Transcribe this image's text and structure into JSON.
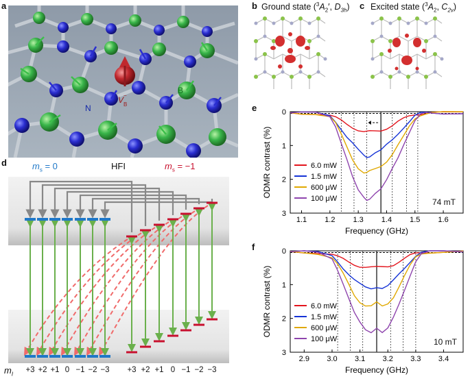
{
  "panels": {
    "a": {
      "letter": "a",
      "label_N": "N",
      "label_B": "B",
      "label_V": "V",
      "label_V_sub": "B",
      "label_V_sup": "−"
    },
    "b": {
      "letter": "b",
      "title_main": "Ground state (",
      "title_sup": "3",
      "title_A": "A",
      "title_sub": "2",
      "title_prime": "′, ",
      "title_D": "D",
      "title_D_sub": "3h",
      "title_close": ")"
    },
    "c": {
      "letter": "c",
      "title_main": "Excited state (",
      "title_sup": "3",
      "title_A": "A",
      "title_sub": "2",
      "title_sep": ", ",
      "title_C": "C",
      "title_C_sub": "2v",
      "title_close": ")"
    },
    "d": {
      "letter": "d",
      "ms0_m": "m",
      "ms0_sub": "s",
      "ms0_rest": " = 0",
      "hfi": "HFI",
      "msm1_m": "m",
      "msm1_sub": "s",
      "msm1_rest": " = −1",
      "mI_m": "m",
      "mI_sub": "I",
      "mI_values_left": [
        "+3",
        "+2",
        "+1",
        "0",
        "−1",
        "−2",
        "−3"
      ],
      "mI_values_right": [
        "+3",
        "+2",
        "+1",
        "0",
        "−1",
        "−2",
        "−3"
      ],
      "colors": {
        "ms0": "#1f78c8",
        "msm1": "#c8102e",
        "green": "#6ab04c",
        "gray": "#888888",
        "dashed": "#f06a6a"
      }
    },
    "e": {
      "letter": "e",
      "field": "74 mT"
    },
    "f": {
      "letter": "f",
      "field": "10 mT"
    }
  },
  "chart_data": [
    {
      "panel": "e",
      "type": "line",
      "xlabel": "Frequency (GHz)",
      "ylabel": "ODMR contrast (%)",
      "xlim": [
        1.06,
        1.67
      ],
      "ylim": [
        3,
        0
      ],
      "x_ticks": [
        "1.1",
        "1.2",
        "1.3",
        "1.4",
        "1.5",
        "1.6"
      ],
      "y_ticks": [
        "0",
        "1",
        "2",
        "3"
      ],
      "center_line": 1.38,
      "dotted_lines": [
        1.24,
        1.285,
        1.33,
        1.42,
        1.47,
        1.51
      ],
      "x": [
        1.06,
        1.1,
        1.15,
        1.2,
        1.22,
        1.24,
        1.26,
        1.28,
        1.3,
        1.32,
        1.33,
        1.34,
        1.36,
        1.38,
        1.4,
        1.42,
        1.44,
        1.46,
        1.48,
        1.5,
        1.52,
        1.54,
        1.56,
        1.6,
        1.67
      ],
      "series": [
        {
          "name": "6.0 mW",
          "color": "#e3141c",
          "values": [
            0.03,
            0.04,
            0.05,
            0.1,
            0.18,
            0.28,
            0.38,
            0.46,
            0.53,
            0.58,
            0.6,
            0.6,
            0.58,
            0.55,
            0.48,
            0.4,
            0.3,
            0.22,
            0.14,
            0.08,
            0.05,
            0.04,
            0.03,
            0.03,
            0.03
          ]
        },
        {
          "name": "1.5 mW",
          "color": "#1432d6",
          "values": [
            0.03,
            0.04,
            0.05,
            0.12,
            0.28,
            0.5,
            0.75,
            0.95,
            1.15,
            1.3,
            1.33,
            1.3,
            1.2,
            1.15,
            1.0,
            0.85,
            0.65,
            0.45,
            0.28,
            0.12,
            0.06,
            0.04,
            0.03,
            0.03,
            0.03
          ]
        },
        {
          "name": "600 μW",
          "color": "#e0a800",
          "values": [
            0.03,
            0.04,
            0.05,
            0.14,
            0.35,
            0.7,
            1.05,
            1.4,
            1.65,
            1.8,
            1.82,
            1.78,
            1.7,
            1.6,
            1.45,
            1.25,
            1.0,
            0.75,
            0.45,
            0.2,
            0.08,
            0.04,
            0.03,
            0.03,
            0.03
          ]
        },
        {
          "name": "100 μW",
          "color": "#8e44ad",
          "values": [
            0.03,
            0.04,
            0.05,
            0.16,
            0.42,
            0.9,
            1.4,
            1.95,
            2.35,
            2.55,
            2.6,
            2.55,
            2.4,
            2.3,
            2.05,
            1.7,
            1.35,
            0.95,
            0.6,
            0.28,
            0.1,
            0.05,
            0.03,
            0.03,
            0.03
          ]
        }
      ]
    },
    {
      "panel": "f",
      "type": "line",
      "xlabel": "Frequency (GHz)",
      "ylabel": "ODMR contrast (%)",
      "xlim": [
        2.85,
        3.47
      ],
      "ylim": [
        3,
        0
      ],
      "x_ticks": [
        "2.9",
        "3.0",
        "3.1",
        "3.2",
        "3.3",
        "3.4"
      ],
      "y_ticks": [
        "0",
        "1",
        "2",
        "3"
      ],
      "center_line": 3.16,
      "dotted_lines": [
        3.02,
        3.065,
        3.11,
        3.21,
        3.255,
        3.3
      ],
      "x": [
        2.85,
        2.9,
        2.95,
        3.0,
        3.02,
        3.04,
        3.06,
        3.08,
        3.1,
        3.12,
        3.14,
        3.16,
        3.18,
        3.2,
        3.22,
        3.24,
        3.26,
        3.28,
        3.3,
        3.32,
        3.35,
        3.4,
        3.47
      ],
      "series": [
        {
          "name": "6.0 mW",
          "color": "#e3141c",
          "values": [
            0.02,
            0.03,
            0.05,
            0.1,
            0.18,
            0.26,
            0.34,
            0.4,
            0.45,
            0.48,
            0.5,
            0.5,
            0.48,
            0.45,
            0.4,
            0.32,
            0.24,
            0.15,
            0.08,
            0.04,
            0.03,
            0.02,
            0.02
          ]
        },
        {
          "name": "1.5 mW",
          "color": "#1432d6",
          "values": [
            0.02,
            0.03,
            0.06,
            0.15,
            0.3,
            0.5,
            0.7,
            0.88,
            1.0,
            1.08,
            1.1,
            1.05,
            1.1,
            1.05,
            0.9,
            0.7,
            0.5,
            0.3,
            0.14,
            0.06,
            0.03,
            0.02,
            0.02
          ]
        },
        {
          "name": "600 μW",
          "color": "#e0a800",
          "values": [
            0.02,
            0.03,
            0.07,
            0.2,
            0.42,
            0.7,
            1.0,
            1.3,
            1.5,
            1.62,
            1.65,
            1.55,
            1.65,
            1.55,
            1.35,
            1.05,
            0.75,
            0.45,
            0.2,
            0.08,
            0.03,
            0.02,
            0.02
          ]
        },
        {
          "name": "100 μW",
          "color": "#8e44ad",
          "values": [
            0.02,
            0.03,
            0.08,
            0.25,
            0.55,
            0.95,
            1.4,
            1.85,
            2.15,
            2.35,
            2.4,
            2.25,
            2.4,
            2.3,
            2.0,
            1.6,
            1.15,
            0.7,
            0.3,
            0.1,
            0.04,
            0.02,
            0.02
          ]
        }
      ]
    }
  ]
}
